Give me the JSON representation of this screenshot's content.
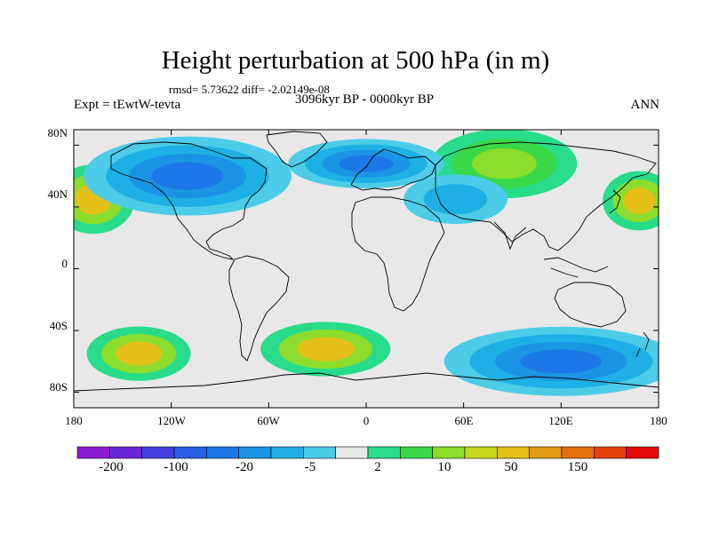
{
  "title": "Height perturbation at 500 hPa (in m)",
  "stats_text": "rmsd= 5.73622 diff= -2.02149e-08",
  "experiment_label": "Expt = tEwtW-tevta",
  "period_label": "3096kyr BP - 0000kyr BP",
  "season_label": "ANN",
  "map": {
    "projection": "cylindrical equidistant",
    "lon_range": [
      -180,
      180
    ],
    "lat_range": [
      -90,
      90
    ],
    "lat_ticks": [
      {
        "lat": 80,
        "label": "80N"
      },
      {
        "lat": 40,
        "label": "40N"
      },
      {
        "lat": 0,
        "label": "0"
      },
      {
        "lat": -40,
        "label": "40S"
      },
      {
        "lat": -80,
        "label": "80S"
      }
    ],
    "lon_ticks": [
      {
        "lon": -180,
        "label": "180"
      },
      {
        "lon": -120,
        "label": "120W"
      },
      {
        "lon": -60,
        "label": "60W"
      },
      {
        "lon": 0,
        "label": "0"
      },
      {
        "lon": 60,
        "label": "60E"
      },
      {
        "lon": 120,
        "label": "120E"
      },
      {
        "lon": 180,
        "label": "180"
      }
    ],
    "neutral_color": "#e8e8e8",
    "anomalies": [
      {
        "name": "north-pacific-positive",
        "lon": -168,
        "lat": 45,
        "level": 50,
        "rlon": 16,
        "rlat": 14
      },
      {
        "name": "north-pacific-east-positive",
        "lon": 168,
        "lat": 44,
        "level": 50,
        "rlon": 14,
        "rlat": 12
      },
      {
        "name": "siberia-positive",
        "lon": 85,
        "lat": 68,
        "level": 10,
        "rlon": 28,
        "rlat": 14
      },
      {
        "name": "south-pacific-positive",
        "lon": -140,
        "lat": -55,
        "level": 50,
        "rlon": 20,
        "rlat": 11
      },
      {
        "name": "south-atlantic-positive",
        "lon": -25,
        "lat": -52,
        "level": 50,
        "rlon": 25,
        "rlat": 11
      },
      {
        "name": "canada-negative",
        "lon": -110,
        "lat": 60,
        "level": -20,
        "rlon": 40,
        "rlat": 16
      },
      {
        "name": "north-atlantic-negative",
        "lon": 0,
        "lat": 68,
        "level": -20,
        "rlon": 30,
        "rlat": 10
      },
      {
        "name": "south-indian-negative",
        "lon": 120,
        "lat": -60,
        "level": -20,
        "rlon": 45,
        "rlat": 14
      },
      {
        "name": "central-asia-negative",
        "lon": 55,
        "lat": 45,
        "level": -5,
        "rlon": 20,
        "rlat": 10
      }
    ]
  },
  "colorbar": {
    "tick_labels": [
      "-200",
      "-100",
      "-20",
      "-5",
      "2",
      "10",
      "50",
      "150"
    ],
    "colors": [
      "#8c1cd4",
      "#6a28d8",
      "#4640e0",
      "#2a5ee6",
      "#1c78e6",
      "#1a94e4",
      "#1eb0e4",
      "#4ccce8",
      "#e8e8e8",
      "#28dc8c",
      "#38d848",
      "#8cdc2c",
      "#c8d81c",
      "#e4c018",
      "#e49a14",
      "#e4700e",
      "#e4400a",
      "#e40a0a"
    ]
  }
}
